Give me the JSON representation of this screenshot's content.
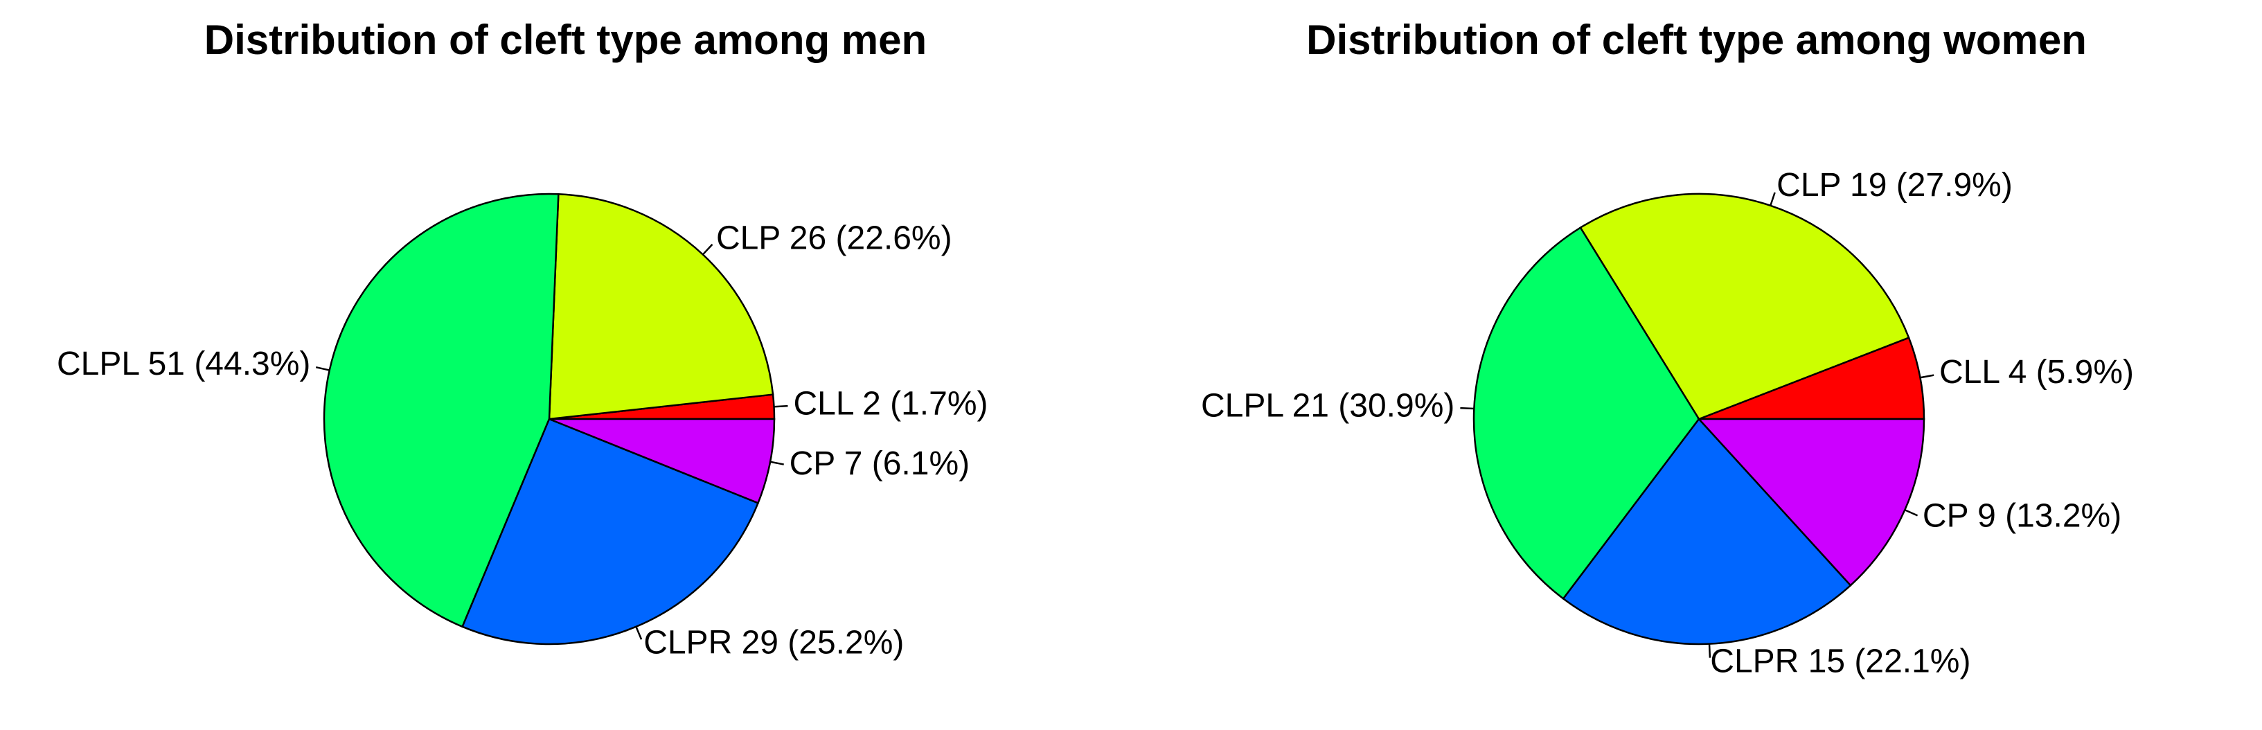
{
  "chart_data": [
    {
      "type": "pie",
      "title": "Distribution of cleft type among men",
      "slices": [
        {
          "label": "CLL",
          "value": 2,
          "percent": "1.7%",
          "color": "#ff0000",
          "text": "CLL 2 (1.7%)"
        },
        {
          "label": "CLP",
          "value": 26,
          "percent": "22.6%",
          "color": "#ccff00",
          "text": "CLP 26 (22.6%)"
        },
        {
          "label": "CLPL",
          "value": 51,
          "percent": "44.3%",
          "color": "#00ff66",
          "text": "CLPL 51 (44.3%)"
        },
        {
          "label": "CLPR",
          "value": 29,
          "percent": "25.2%",
          "color": "#0066ff",
          "text": "CLPR 29 (25.2%)"
        },
        {
          "label": "CP",
          "value": 7,
          "percent": "6.1%",
          "color": "#cc00ff",
          "text": "CP 7 (6.1%)"
        }
      ]
    },
    {
      "type": "pie",
      "title": "Distribution of cleft type among women",
      "slices": [
        {
          "label": "CLL",
          "value": 4,
          "percent": "5.9%",
          "color": "#ff0000",
          "text": "CLL 4 (5.9%)"
        },
        {
          "label": "CLP",
          "value": 19,
          "percent": "27.9%",
          "color": "#ccff00",
          "text": "CLP 19 (27.9%)"
        },
        {
          "label": "CLPL",
          "value": 21,
          "percent": "30.9%",
          "color": "#00ff66",
          "text": "CLPL 21 (30.9%)"
        },
        {
          "label": "CLPR",
          "value": 15,
          "percent": "22.1%",
          "color": "#0066ff",
          "text": "CLPR 15 (22.1%)"
        },
        {
          "label": "CP",
          "value": 9,
          "percent": "13.2%",
          "color": "#cc00ff",
          "text": "CP 9 (13.2%)"
        }
      ]
    }
  ]
}
